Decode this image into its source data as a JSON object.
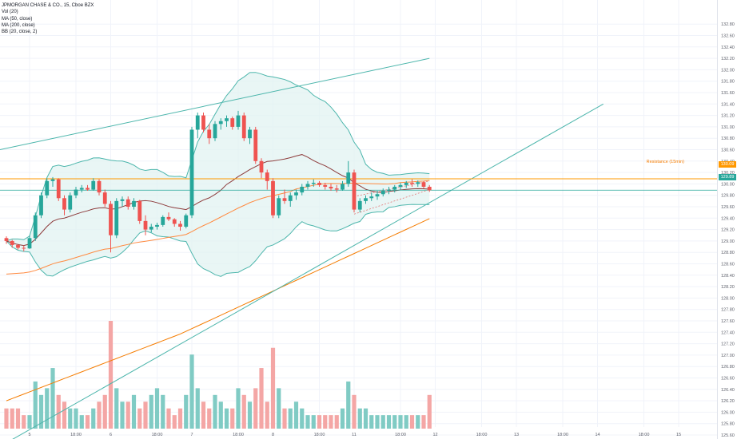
{
  "legend": {
    "symbol": "JPMORGAN CHASE & CO., 15, Cboe BZX",
    "ind1": "Vol (20)",
    "ind2": "MA (50, close)",
    "ind3": "MA (200, close)",
    "ind4": "BB (20, close, 2)"
  },
  "resistance": {
    "label": "Resistance (15min)",
    "price": 130.09,
    "tag": "130.09"
  },
  "last_price": {
    "price": 129.89,
    "tag": "129.89"
  },
  "colors": {
    "up": "#26a69a",
    "down": "#ef5350",
    "vol_up": "#80cbc4",
    "vol_down": "#f4a6a5",
    "bb": "#4db6ac",
    "bb_fill": "#e0f2f1",
    "ma20": "#8d3b3b",
    "ma50": "#ff8a40",
    "ma200": "#f57c00",
    "trend": "#4db6ac",
    "resistance": "#ff9800",
    "wedge": "#e57373",
    "grid": "#f0f3fa"
  },
  "chart_data": {
    "type": "candlestick",
    "timeframe": "15",
    "y_ticks": [
      "125.60",
      "125.80",
      "126.00",
      "126.20",
      "126.40",
      "126.60",
      "126.80",
      "127.00",
      "127.20",
      "127.40",
      "127.60",
      "127.80",
      "128.00",
      "128.20",
      "128.40",
      "128.60",
      "128.80",
      "129.00",
      "129.20",
      "129.40",
      "129.60",
      "129.80",
      "130.00",
      "130.20",
      "130.40",
      "130.60",
      "130.80",
      "131.00",
      "131.20",
      "131.40",
      "131.60",
      "131.80",
      "132.00",
      "132.20",
      "132.40",
      "132.60",
      "132.80"
    ],
    "x_ticks": [
      {
        "label": "5",
        "bar": 4
      },
      {
        "label": "18:00",
        "bar": 12
      },
      {
        "label": "6",
        "bar": 18
      },
      {
        "label": "18:00",
        "bar": 26
      },
      {
        "label": "7",
        "bar": 32
      },
      {
        "label": "18:00",
        "bar": 40
      },
      {
        "label": "8",
        "bar": 46
      },
      {
        "label": "18:00",
        "bar": 54
      },
      {
        "label": "11",
        "bar": 60
      },
      {
        "label": "18:00",
        "bar": 68
      },
      {
        "label": "12",
        "bar": 74
      },
      {
        "label": "18:00",
        "bar": 82
      },
      {
        "label": "13",
        "bar": 88
      },
      {
        "label": "18:00",
        "bar": 96
      },
      {
        "label": "14",
        "bar": 102
      },
      {
        "label": "18:00",
        "bar": 110
      },
      {
        "label": "15",
        "bar": 116
      }
    ],
    "ohlc": [
      [
        129.05,
        129.08,
        128.95,
        129.0
      ],
      [
        129.0,
        129.02,
        128.88,
        128.93
      ],
      [
        128.93,
        128.95,
        128.85,
        128.88
      ],
      [
        128.88,
        128.92,
        128.82,
        128.87
      ],
      [
        128.87,
        129.1,
        128.86,
        129.05
      ],
      [
        129.05,
        129.5,
        129.0,
        129.45
      ],
      [
        129.45,
        129.85,
        129.4,
        129.8
      ],
      [
        129.8,
        130.1,
        129.75,
        130.05
      ],
      [
        130.05,
        130.12,
        129.95,
        130.08
      ],
      [
        130.08,
        130.1,
        129.7,
        129.75
      ],
      [
        129.75,
        129.8,
        129.45,
        129.55
      ],
      [
        129.55,
        129.85,
        129.5,
        129.8
      ],
      [
        129.8,
        129.95,
        129.75,
        129.9
      ],
      [
        129.9,
        129.98,
        129.85,
        129.93
      ],
      [
        129.93,
        129.98,
        129.88,
        129.9
      ],
      [
        129.9,
        130.1,
        129.88,
        130.05
      ],
      [
        130.05,
        130.08,
        129.8,
        129.85
      ],
      [
        129.85,
        129.9,
        129.6,
        129.65
      ],
      [
        129.65,
        129.7,
        128.8,
        129.1
      ],
      [
        129.1,
        129.75,
        129.05,
        129.7
      ],
      [
        129.7,
        129.78,
        129.6,
        129.73
      ],
      [
        129.73,
        129.78,
        129.55,
        129.6
      ],
      [
        129.6,
        129.75,
        129.55,
        129.7
      ],
      [
        129.7,
        129.72,
        129.3,
        129.35
      ],
      [
        129.35,
        129.45,
        129.1,
        129.2
      ],
      [
        129.2,
        129.3,
        129.15,
        129.25
      ],
      [
        129.25,
        129.32,
        129.2,
        129.28
      ],
      [
        129.28,
        129.45,
        129.25,
        129.42
      ],
      [
        129.42,
        129.5,
        129.35,
        129.38
      ],
      [
        129.38,
        129.4,
        129.25,
        129.3
      ],
      [
        129.3,
        129.35,
        129.18,
        129.25
      ],
      [
        129.25,
        129.48,
        129.22,
        129.45
      ],
      [
        129.45,
        131.0,
        129.4,
        130.95
      ],
      [
        130.95,
        131.25,
        130.8,
        131.2
      ],
      [
        131.2,
        131.25,
        130.9,
        130.95
      ],
      [
        130.95,
        131.05,
        130.7,
        130.8
      ],
      [
        130.8,
        131.1,
        130.75,
        131.05
      ],
      [
        131.05,
        131.15,
        130.95,
        131.1
      ],
      [
        131.1,
        131.2,
        131.0,
        131.15
      ],
      [
        131.15,
        131.18,
        130.95,
        131.0
      ],
      [
        131.0,
        131.28,
        130.95,
        131.2
      ],
      [
        131.2,
        131.25,
        130.75,
        130.8
      ],
      [
        130.8,
        131.0,
        130.7,
        130.95
      ],
      [
        130.95,
        131.0,
        130.35,
        130.4
      ],
      [
        130.4,
        130.45,
        130.1,
        130.2
      ],
      [
        130.2,
        130.25,
        129.9,
        130.05
      ],
      [
        130.05,
        130.1,
        129.4,
        129.45
      ],
      [
        129.45,
        129.8,
        129.4,
        129.75
      ],
      [
        129.75,
        129.9,
        129.65,
        129.7
      ],
      [
        129.7,
        129.85,
        129.6,
        129.8
      ],
      [
        129.8,
        129.9,
        129.72,
        129.85
      ],
      [
        129.85,
        130.0,
        129.8,
        129.95
      ],
      [
        129.95,
        130.05,
        129.9,
        130.0
      ],
      [
        130.0,
        130.08,
        129.95,
        130.02
      ],
      [
        130.02,
        130.05,
        129.95,
        129.98
      ],
      [
        129.98,
        130.02,
        129.9,
        129.95
      ],
      [
        129.95,
        130.0,
        129.88,
        129.92
      ],
      [
        129.92,
        129.98,
        129.85,
        129.9
      ],
      [
        129.9,
        130.05,
        129.88,
        130.0
      ],
      [
        130.0,
        130.4,
        129.95,
        130.2
      ],
      [
        130.2,
        130.25,
        129.5,
        129.55
      ],
      [
        129.55,
        129.75,
        129.5,
        129.7
      ],
      [
        129.7,
        129.8,
        129.65,
        129.75
      ],
      [
        129.75,
        129.85,
        129.7,
        129.78
      ],
      [
        129.78,
        129.88,
        129.72,
        129.82
      ],
      [
        129.82,
        129.92,
        129.78,
        129.88
      ],
      [
        129.88,
        129.95,
        129.82,
        129.9
      ],
      [
        129.9,
        129.98,
        129.85,
        129.95
      ],
      [
        129.95,
        130.02,
        129.9,
        129.98
      ],
      [
        129.98,
        130.05,
        129.93,
        130.02
      ],
      [
        130.02,
        130.08,
        129.95,
        130.0
      ],
      [
        130.0,
        130.06,
        129.95,
        130.03
      ],
      [
        130.03,
        130.05,
        129.92,
        129.95
      ],
      [
        129.95,
        129.98,
        129.86,
        129.89
      ]
    ],
    "volume": [
      3,
      3,
      3,
      2,
      2,
      7,
      5,
      6,
      9,
      5,
      4,
      3,
      3,
      2,
      2,
      3,
      4,
      5,
      16,
      6,
      4,
      4,
      5,
      3,
      4,
      5,
      6,
      5,
      3,
      2,
      3,
      5,
      11,
      6,
      4,
      3,
      5,
      4,
      3,
      3,
      6,
      5,
      4,
      6,
      9,
      4,
      12,
      6,
      3,
      3,
      4,
      3,
      2,
      2,
      2,
      2,
      2,
      2,
      3,
      7,
      5,
      3,
      3,
      2,
      2,
      2,
      2,
      2,
      2,
      2,
      2,
      2,
      2,
      5
    ]
  }
}
